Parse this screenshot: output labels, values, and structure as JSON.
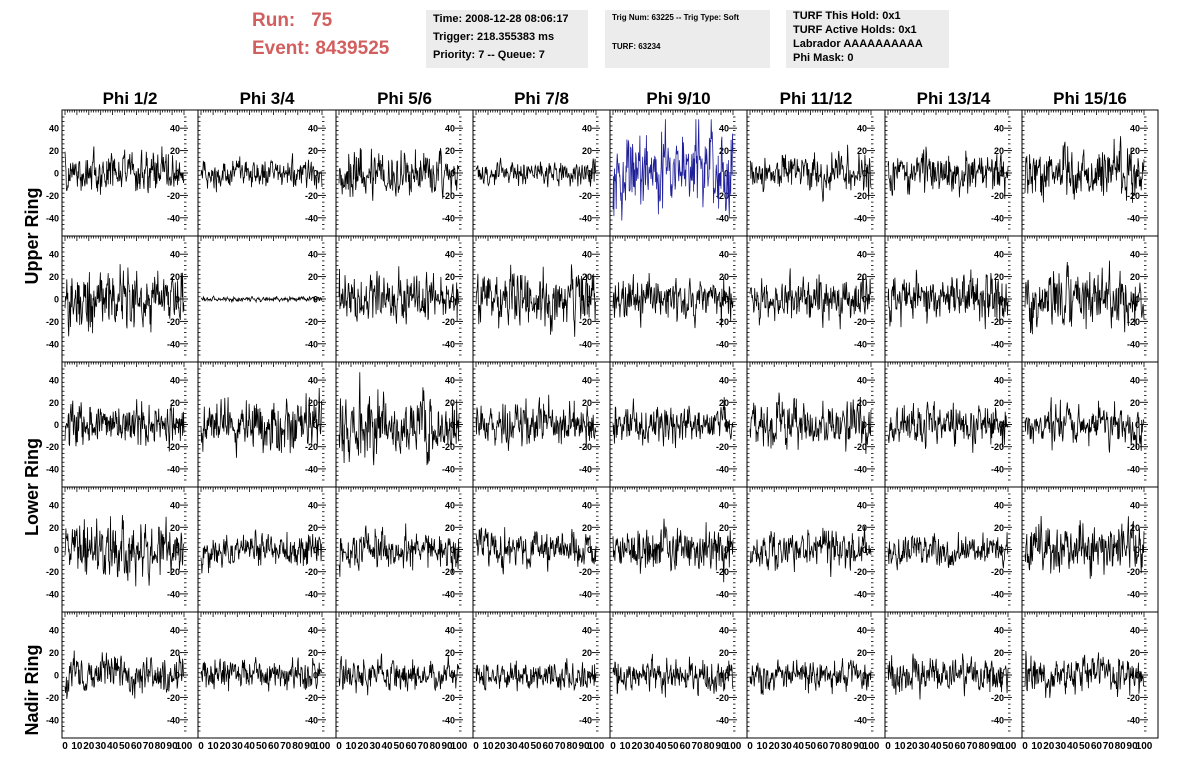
{
  "header": {
    "run_label": "Run:",
    "run_value": "75",
    "event_label": "Event:",
    "event_value": "8439525",
    "time": "Time: 2008-12-28 08:06:17",
    "trigger": "Trigger: 218.355383 ms",
    "priority": "Priority: 7 -- Queue: 7",
    "trig_num": "Trig Num: 63225 -- Trig Type: Soft",
    "turf": "TURF: 63234",
    "turf_hold": "TURF This Hold: 0x1",
    "turf_active": "TURF Active Holds: 0x1",
    "labrador": "Labrador AAAAAAAAAA",
    "phi_mask": "Phi Mask: 0"
  },
  "columns": [
    "Phi 1/2",
    "Phi 3/4",
    "Phi 5/6",
    "Phi 7/8",
    "Phi 9/10",
    "Phi 11/12",
    "Phi 13/14",
    "Phi 15/16"
  ],
  "rings": [
    "Upper Ring",
    "Lower Ring",
    "Nadir Ring"
  ],
  "y_ticks": [
    "40",
    "20",
    "0",
    "-20",
    "-40"
  ],
  "x_tick_labels": [
    "0",
    "10",
    "20",
    "30",
    "40",
    "50",
    "60",
    "70",
    "80",
    "90",
    "100"
  ],
  "colors": {
    "trace": "#000000",
    "highlight_trace": "#1f1f9a",
    "title_red": "#d25f5f",
    "info_bg": "#ececec"
  },
  "chart_data": {
    "type": "line",
    "description_units": {
      "x": "sample index",
      "y": "mV"
    },
    "xlim": [
      0,
      100
    ],
    "ylim": [
      -50,
      50
    ],
    "rows": 5,
    "cols": 8,
    "highlighted_panel": {
      "row": 0,
      "col": 4
    },
    "panel_amplitudes": [
      [
        12,
        8,
        14,
        7,
        22,
        11,
        12,
        14
      ],
      [
        17,
        1.5,
        14,
        16,
        12,
        13,
        14,
        16
      ],
      [
        13,
        15,
        18,
        12,
        11,
        13,
        13,
        11
      ],
      [
        17,
        10,
        12,
        11,
        13,
        11,
        10,
        14
      ],
      [
        11,
        9,
        9,
        8,
        10,
        9,
        10,
        11
      ]
    ]
  }
}
